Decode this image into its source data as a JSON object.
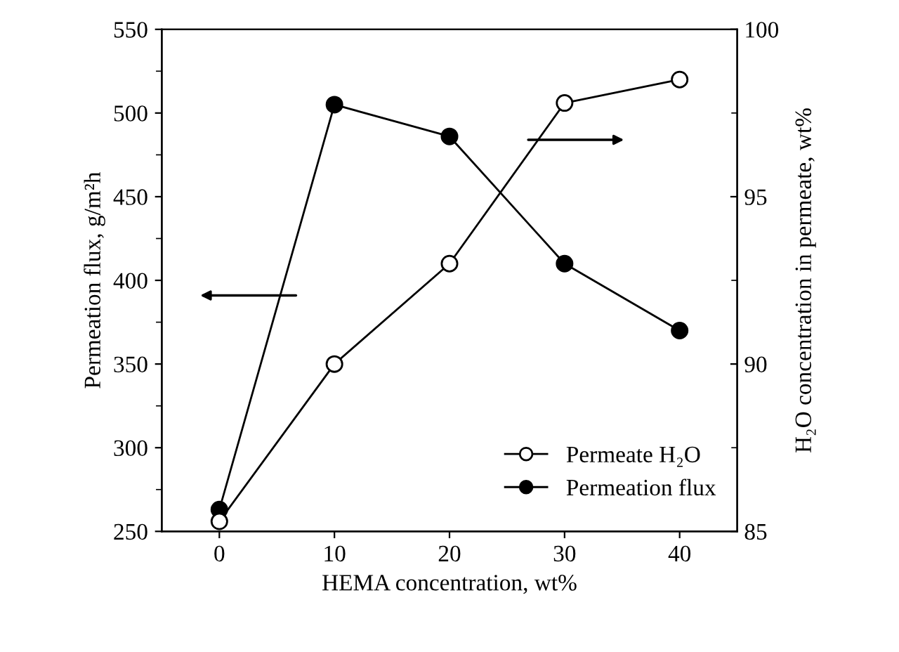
{
  "chart_data": {
    "type": "line",
    "xlabel": "HEMA concentration, wt%",
    "ylabel": "Permeation flux, g/m²h",
    "y2label": "H₂O concentration in permeate, wt%",
    "x": [
      0,
      10,
      20,
      30,
      40
    ],
    "series": [
      {
        "name": "Permeate H₂O",
        "color": "#000000",
        "values": [
          85.3,
          90.0,
          93.0,
          97.8,
          98.5
        ],
        "axis": "y2",
        "marker": "circle"
      },
      {
        "name": "Permeation flux",
        "color": "#000000",
        "values": [
          263,
          505,
          486,
          410,
          370
        ],
        "axis": "y",
        "marker": "circle"
      }
    ],
    "xlim": [
      -5,
      45
    ],
    "xticks": [
      0,
      10,
      20,
      30,
      40
    ],
    "ylim": [
      250,
      550
    ],
    "yticks": [
      250,
      300,
      350,
      400,
      450,
      500,
      550
    ],
    "y2lim": [
      85,
      100
    ],
    "y2ticks": [
      85,
      90,
      95,
      100
    ],
    "legend": "bottom right",
    "grid": false,
    "line_style": "solid"
  }
}
